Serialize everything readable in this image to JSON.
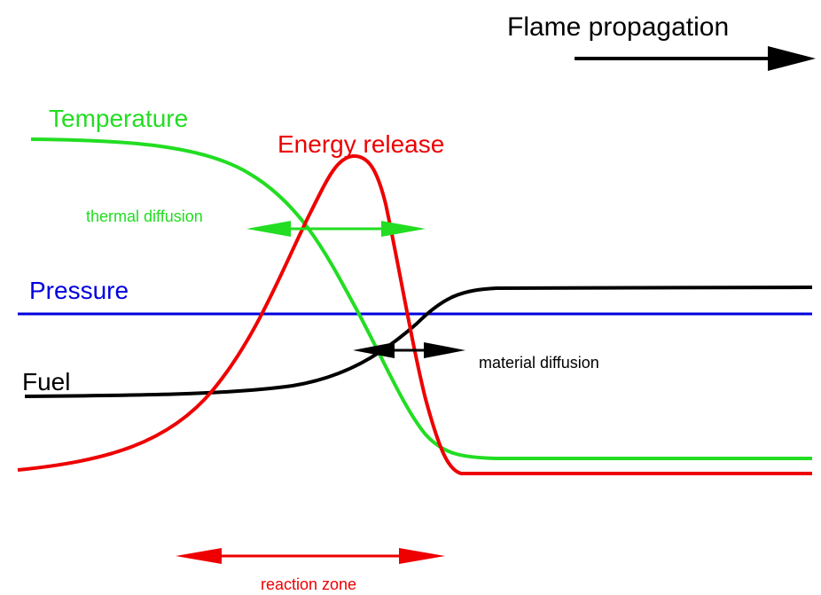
{
  "title": "Flame propagation",
  "labels": {
    "temperature": "Temperature",
    "energy_release": "Energy release",
    "thermal_diffusion": "thermal diffusion",
    "pressure": "Pressure",
    "fuel": "Fuel",
    "material_diffusion": "material diffusion",
    "reaction_zone": "reaction zone"
  }
}
